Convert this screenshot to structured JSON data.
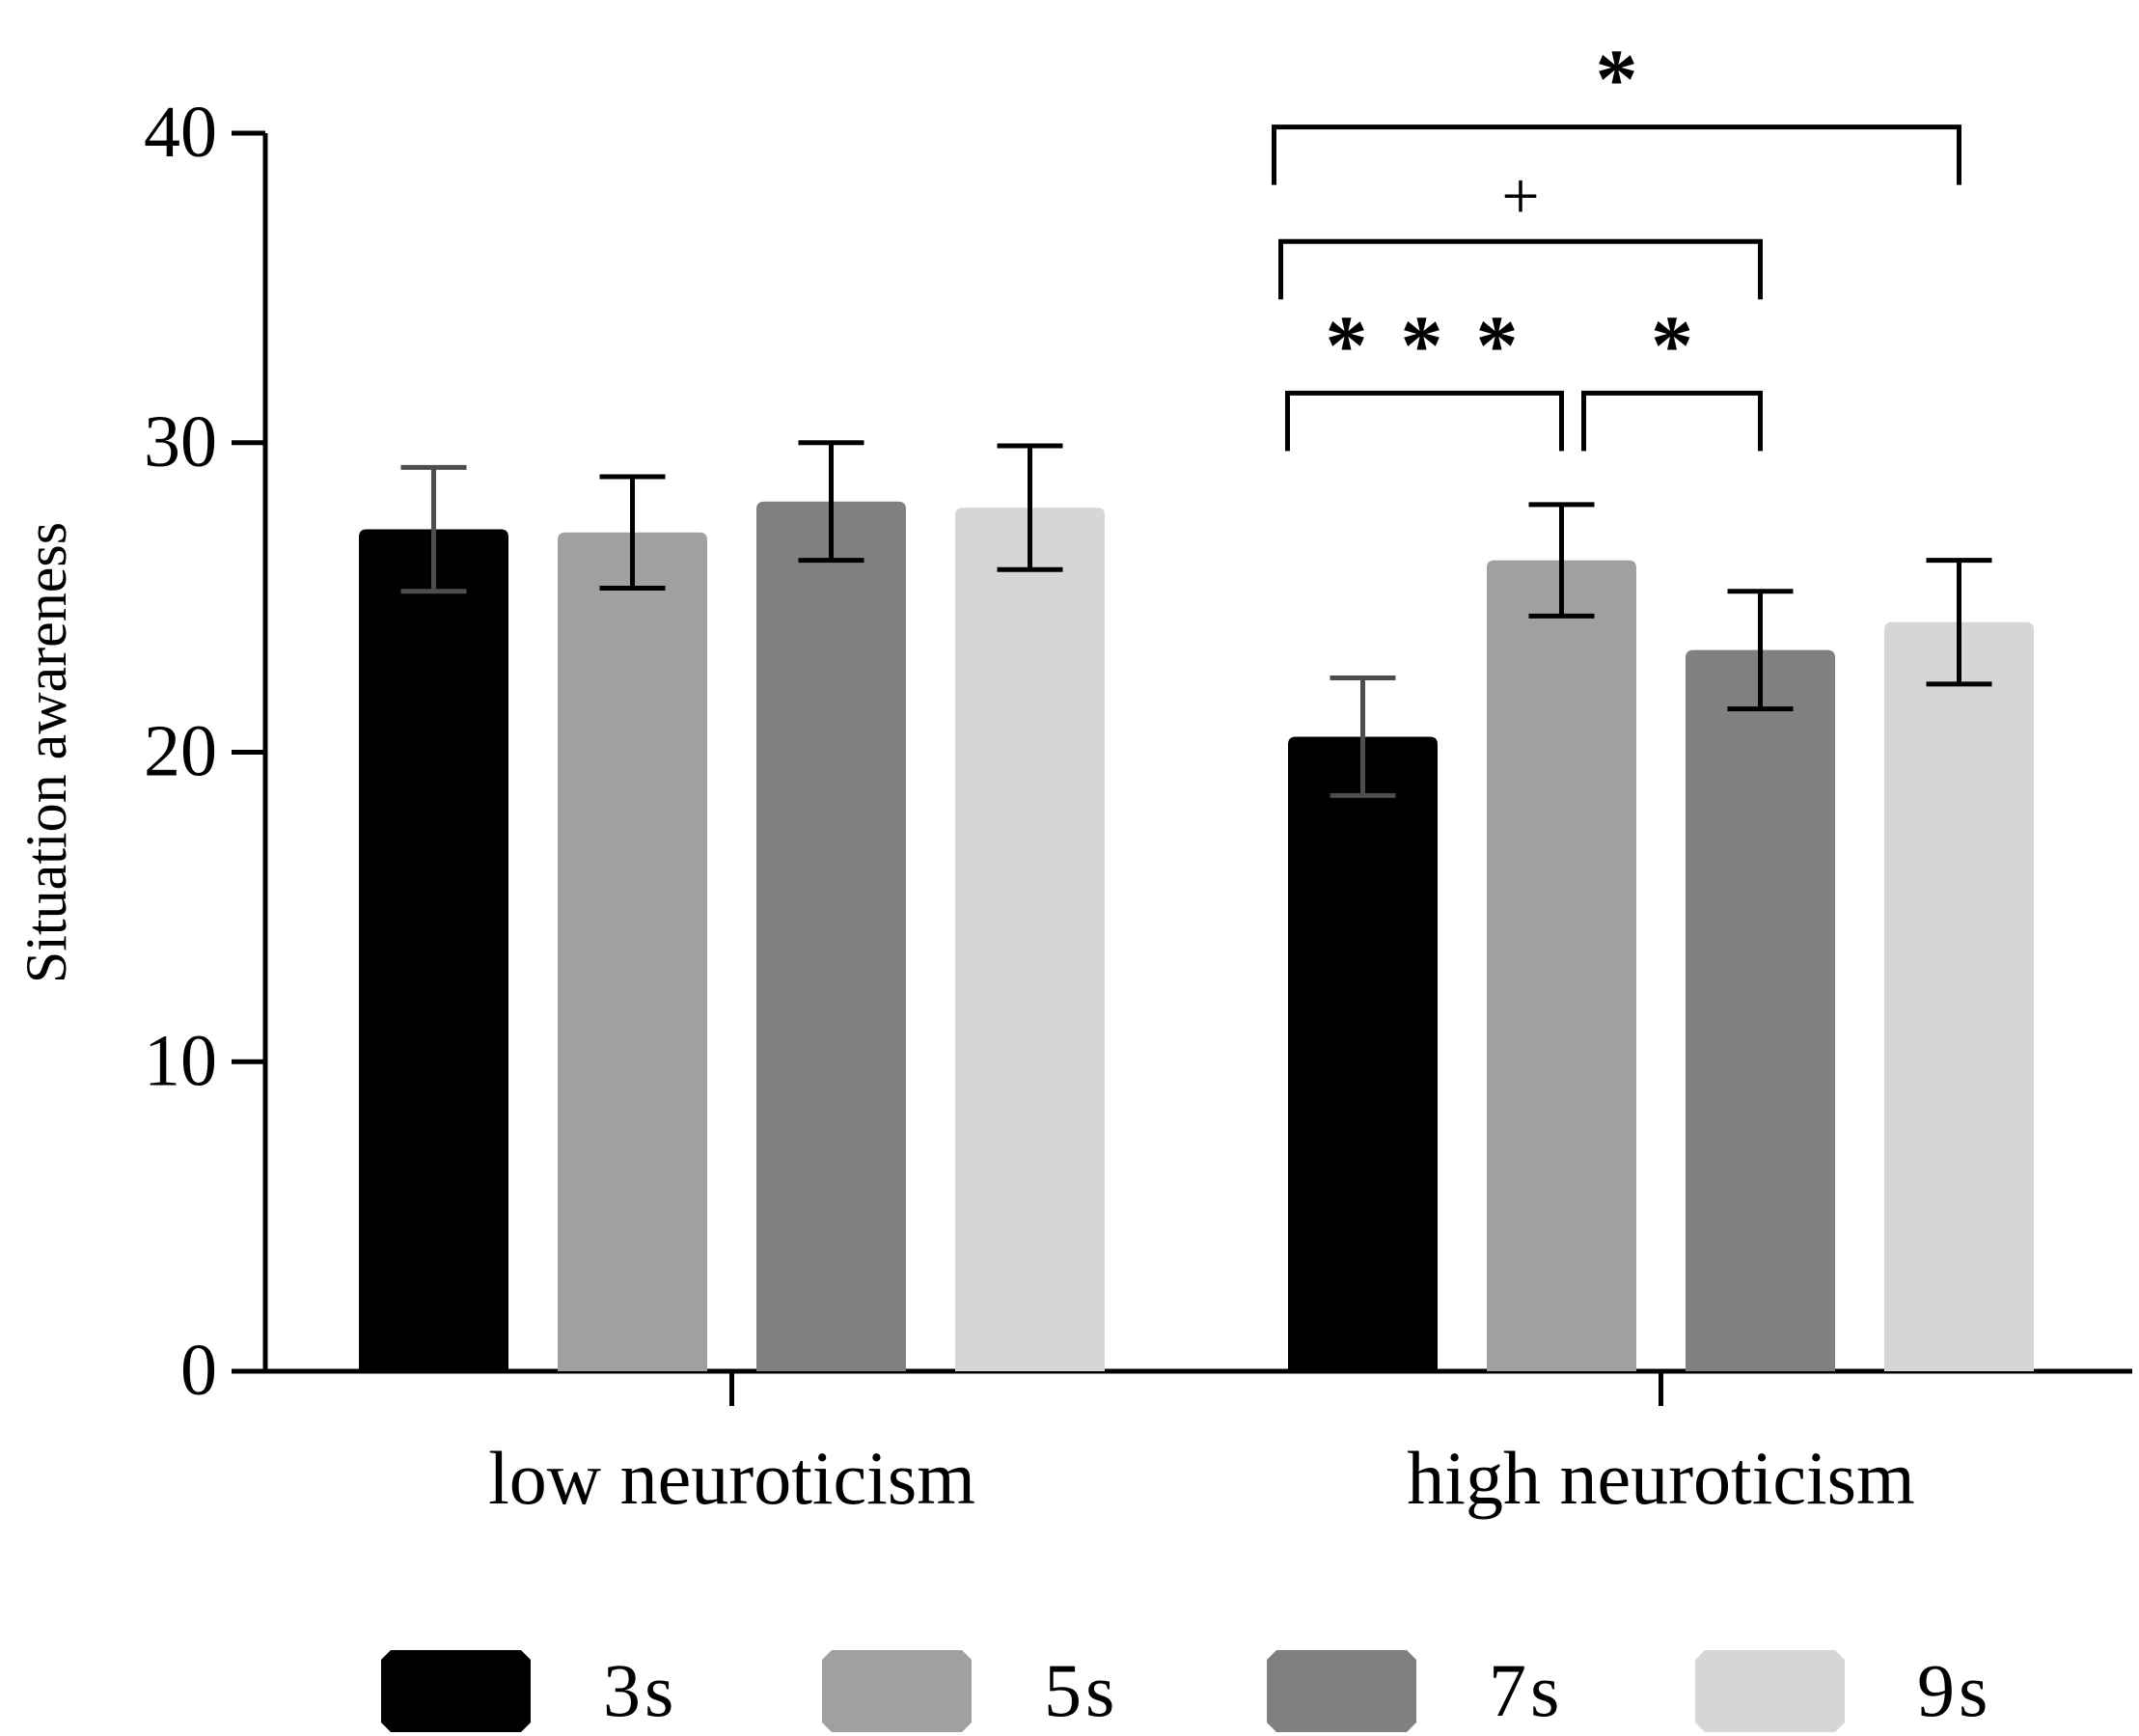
{
  "chart_data": {
    "type": "bar",
    "title": "",
    "xlabel": "",
    "ylabel": "Situation awareness",
    "ylim": [
      0,
      40
    ],
    "yticks": [
      "0",
      "10",
      "20",
      "30",
      "40"
    ],
    "grid": false,
    "legend_position": "bottom",
    "categories": [
      "low neuroticism",
      "high neuroticism"
    ],
    "series": [
      {
        "name": "3s",
        "color": "#000000",
        "values": [
          27.2,
          20.5
        ],
        "errors": [
          2.0,
          1.9
        ],
        "error_color": [
          "#4d4d4d",
          "#4d4d4d"
        ]
      },
      {
        "name": "5s",
        "color": "#a0a0a3",
        "values": [
          27.1,
          26.2
        ],
        "errors": [
          1.8,
          1.8
        ],
        "error_color": [
          "#000000",
          "#000000"
        ]
      },
      {
        "name": "7s",
        "color": "#808080",
        "values": [
          28.1,
          23.3
        ],
        "errors": [
          1.9,
          1.9
        ],
        "error_color": [
          "#000000",
          "#000000"
        ]
      },
      {
        "name": "9s",
        "color": "#d6d6d6",
        "values": [
          27.9,
          24.2
        ],
        "errors": [
          2.0,
          2.0
        ],
        "error_color": [
          "#000000",
          "#000000"
        ]
      }
    ],
    "annotations": [
      {
        "group": "high neuroticism",
        "from": "3s",
        "to": "9s",
        "label": "*",
        "level": 40.2
      },
      {
        "group": "high neuroticism",
        "from": "3s",
        "to": "7s",
        "label": "+",
        "level": 36.5
      },
      {
        "group": "high neuroticism",
        "from": "3s",
        "to": "5s",
        "label": "* * *",
        "level": 31.6
      },
      {
        "group": "high neuroticism",
        "from": "5s",
        "to": "7s",
        "label": "*",
        "level": 31.6
      }
    ]
  }
}
